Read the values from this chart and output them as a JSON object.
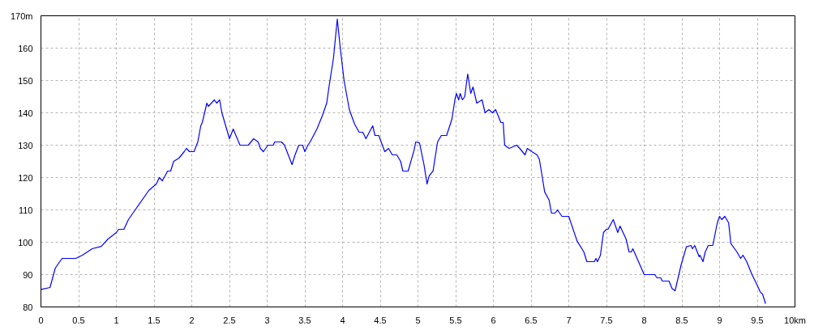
{
  "chart_data": {
    "type": "line",
    "xlim": [
      0,
      10
    ],
    "ylim": [
      80,
      170
    ],
    "xticks": [
      0,
      0.5,
      1,
      1.5,
      2,
      2.5,
      3,
      3.5,
      4,
      4.5,
      5,
      5.5,
      6,
      6.5,
      7,
      7.5,
      8,
      8.5,
      9,
      9.5,
      {
        "value": 10,
        "label": "10km"
      }
    ],
    "yticks": [
      80,
      90,
      100,
      110,
      120,
      130,
      140,
      150,
      160,
      {
        "value": 170,
        "label": "170m"
      }
    ],
    "grid": true,
    "marker": "none",
    "line_style": "solid",
    "series": [
      {
        "color": "#0000ff",
        "x": [
          0,
          0.12,
          0.19,
          0.28,
          0.46,
          0.55,
          0.68,
          0.8,
          0.89,
          1.0,
          1.03,
          1.1,
          1.16,
          1.25,
          1.43,
          1.53,
          1.57,
          1.61,
          1.68,
          1.72,
          1.76,
          1.83,
          1.9,
          1.93,
          1.97,
          2.03,
          2.08,
          2.12,
          2.14,
          2.2,
          2.22,
          2.26,
          2.3,
          2.33,
          2.37,
          2.4,
          2.5,
          2.55,
          2.64,
          2.75,
          2.82,
          2.88,
          2.91,
          2.95,
          2.98,
          3.01,
          3.08,
          3.1,
          3.19,
          3.23,
          3.33,
          3.37,
          3.42,
          3.47,
          3.5,
          3.54,
          3.57,
          3.66,
          3.73,
          3.79,
          3.82,
          3.88,
          3.93,
          3.97,
          4.02,
          4.09,
          4.16,
          4.22,
          4.27,
          4.31,
          4.4,
          4.43,
          4.48,
          4.56,
          4.61,
          4.66,
          4.72,
          4.77,
          4.8,
          4.87,
          4.95,
          4.97,
          5.02,
          5.08,
          5.12,
          5.15,
          5.2,
          5.26,
          5.31,
          5.38,
          5.45,
          5.49,
          5.51,
          5.54,
          5.56,
          5.59,
          5.62,
          5.66,
          5.7,
          5.73,
          5.78,
          5.85,
          5.89,
          5.94,
          5.99,
          6.03,
          6.1,
          6.13,
          6.15,
          6.21,
          6.31,
          6.35,
          6.42,
          6.45,
          6.51,
          6.58,
          6.61,
          6.65,
          6.68,
          6.74,
          6.77,
          6.82,
          6.85,
          6.91,
          7.0,
          7.11,
          7.2,
          7.24,
          7.34,
          7.36,
          7.38,
          7.42,
          7.46,
          7.5,
          7.52,
          7.59,
          7.65,
          7.68,
          7.76,
          7.8,
          7.83,
          7.85,
          8.0,
          8.14,
          8.17,
          8.22,
          8.24,
          8.33,
          8.37,
          8.41,
          8.49,
          8.56,
          8.62,
          8.64,
          8.67,
          8.73,
          8.74,
          8.78,
          8.81,
          8.85,
          8.91,
          8.97,
          9.0,
          9.03,
          9.07,
          9.12,
          9.15,
          9.23,
          9.28,
          9.31,
          9.36,
          9.43,
          9.5,
          9.54,
          9.57,
          9.61
        ],
        "values": [
          85.4,
          86,
          92,
          95,
          95,
          96,
          98,
          98.7,
          101,
          103,
          104,
          104,
          107,
          110,
          116,
          118,
          120,
          119,
          122,
          122,
          125,
          126,
          128,
          129,
          128,
          128,
          131,
          136,
          137,
          143,
          142,
          143,
          144,
          143,
          144,
          140,
          132,
          135,
          130,
          130,
          132,
          131,
          129,
          128,
          129,
          130,
          130,
          131,
          131,
          130,
          124,
          127,
          130,
          130,
          128,
          130,
          131,
          135,
          139,
          143,
          148,
          157,
          169,
          160,
          150,
          141,
          136.5,
          134,
          134,
          132,
          136,
          133,
          133,
          128,
          129,
          127,
          127,
          125,
          122,
          122,
          128.6,
          131,
          130.7,
          124,
          118,
          120.6,
          122,
          131,
          133,
          133,
          138,
          144,
          146,
          144,
          146,
          144,
          145,
          152,
          146,
          148,
          143,
          144,
          140,
          141,
          140,
          141,
          137,
          137,
          130,
          129,
          130,
          129,
          127,
          129,
          128,
          127,
          125.6,
          120,
          115.6,
          113,
          109,
          109,
          110,
          108,
          108,
          100.4,
          97,
          94,
          94,
          95,
          94,
          96,
          103,
          104,
          104,
          107,
          103,
          105,
          101,
          97,
          97,
          98,
          90,
          90,
          89,
          89,
          88,
          88,
          85.7,
          85,
          93,
          98.6,
          99,
          98,
          99,
          95.5,
          96,
          94,
          97,
          99,
          99,
          106,
          108,
          107,
          108,
          106,
          99.6,
          97,
          95,
          96,
          94,
          90,
          86.7,
          84.6,
          84,
          81
        ]
      }
    ]
  }
}
